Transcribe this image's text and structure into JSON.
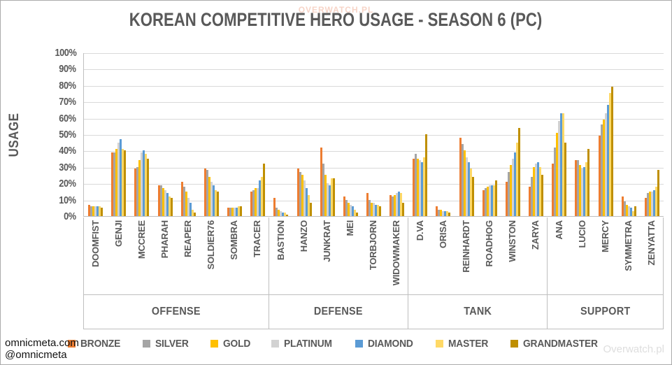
{
  "page": {
    "watermark_top": "OVERWATCH.PL",
    "credit": {
      "line1": "omnicmeta.com",
      "line2": "@omnicmeta"
    },
    "watermark_bottom_right": "Overwatch.pl"
  },
  "chart_data": {
    "type": "bar",
    "title": "KOREAN COMPETITIVE HERO USAGE - SEASON 6 (PC)",
    "ylabel": "USAGE",
    "ylim": [
      0,
      100
    ],
    "ytick_step": 10,
    "value_unit": "%",
    "grid": true,
    "legend_position": "bottom",
    "series": [
      {
        "name": "BRONZE",
        "color": "#ED7D31"
      },
      {
        "name": "SILVER",
        "color": "#A5A5A5"
      },
      {
        "name": "GOLD",
        "color": "#FFC000"
      },
      {
        "name": "PLATINUM",
        "color": "#D2D2D2"
      },
      {
        "name": "DIAMOND",
        "color": "#5B9BD5"
      },
      {
        "name": "MASTER",
        "color": "#FFD966"
      },
      {
        "name": "GRANDMASTER",
        "color": "#BF8F00"
      }
    ],
    "groups": [
      {
        "label": "OFFENSE",
        "heroes": [
          {
            "name": "DOOMFIST",
            "values": [
              7,
              6,
              6,
              6,
              6,
              6,
              5
            ]
          },
          {
            "name": "GENJI",
            "values": [
              39,
              39,
              41,
              45,
              47,
              41,
              40
            ]
          },
          {
            "name": "MCCREE",
            "values": [
              29,
              30,
              34,
              39,
              40,
              38,
              35
            ]
          },
          {
            "name": "PHARAH",
            "values": [
              19,
              19,
              17,
              16,
              14,
              12,
              11
            ]
          },
          {
            "name": "REAPER",
            "values": [
              21,
              18,
              15,
              11,
              8,
              4,
              2
            ]
          },
          {
            "name": "SOLDIER76",
            "values": [
              29,
              28,
              24,
              21,
              19,
              16,
              15
            ]
          },
          {
            "name": "SOMBRA",
            "values": [
              5,
              5,
              5,
              5,
              5,
              6,
              6
            ]
          },
          {
            "name": "TRACER",
            "values": [
              15,
              16,
              17,
              17,
              22,
              24,
              32
            ]
          }
        ]
      },
      {
        "label": "DEFENSE",
        "heroes": [
          {
            "name": "BASTION",
            "values": [
              11,
              5,
              4,
              3,
              2,
              2,
              1
            ]
          },
          {
            "name": "HANZO",
            "values": [
              29,
              27,
              25,
              22,
              17,
              13,
              8
            ]
          },
          {
            "name": "JUNKRAT",
            "values": [
              42,
              32,
              25,
              20,
              19,
              23,
              23
            ]
          },
          {
            "name": "MEI",
            "values": [
              12,
              10,
              8,
              7,
              6,
              4,
              2
            ]
          },
          {
            "name": "TORBJORN",
            "values": [
              14,
              10,
              8,
              8,
              7,
              7,
              6
            ]
          },
          {
            "name": "WIDOWMAKER",
            "values": [
              13,
              12,
              13,
              14,
              15,
              14,
              8
            ]
          }
        ]
      },
      {
        "label": "TANK",
        "heroes": [
          {
            "name": "D.VA",
            "values": [
              35,
              38,
              35,
              34,
              33,
              36,
              50
            ]
          },
          {
            "name": "ORISA",
            "values": [
              6,
              4,
              4,
              3,
              3,
              3,
              2
            ]
          },
          {
            "name": "REINHARDT",
            "values": [
              48,
              44,
              40,
              36,
              33,
              29,
              24
            ]
          },
          {
            "name": "ROADHOG",
            "values": [
              16,
              17,
              18,
              19,
              19,
              19,
              22
            ]
          },
          {
            "name": "WINSTON",
            "values": [
              21,
              27,
              31,
              35,
              39,
              45,
              54
            ]
          },
          {
            "name": "ZARYA",
            "values": [
              18,
              24,
              30,
              32,
              33,
              30,
              25
            ]
          }
        ]
      },
      {
        "label": "SUPPORT",
        "heroes": [
          {
            "name": "ANA",
            "values": [
              32,
              42,
              51,
              58,
              63,
              63,
              45
            ]
          },
          {
            "name": "LUCIO",
            "values": [
              34,
              34,
              31,
              29,
              30,
              33,
              41
            ]
          },
          {
            "name": "MERCY",
            "values": [
              49,
              56,
              59,
              63,
              68,
              75,
              79
            ]
          },
          {
            "name": "SYMMETRA",
            "values": [
              12,
              9,
              7,
              6,
              5,
              3,
              6
            ]
          },
          {
            "name": "ZENYATTA",
            "values": [
              11,
              14,
              15,
              15,
              16,
              18,
              28
            ]
          }
        ]
      }
    ]
  }
}
